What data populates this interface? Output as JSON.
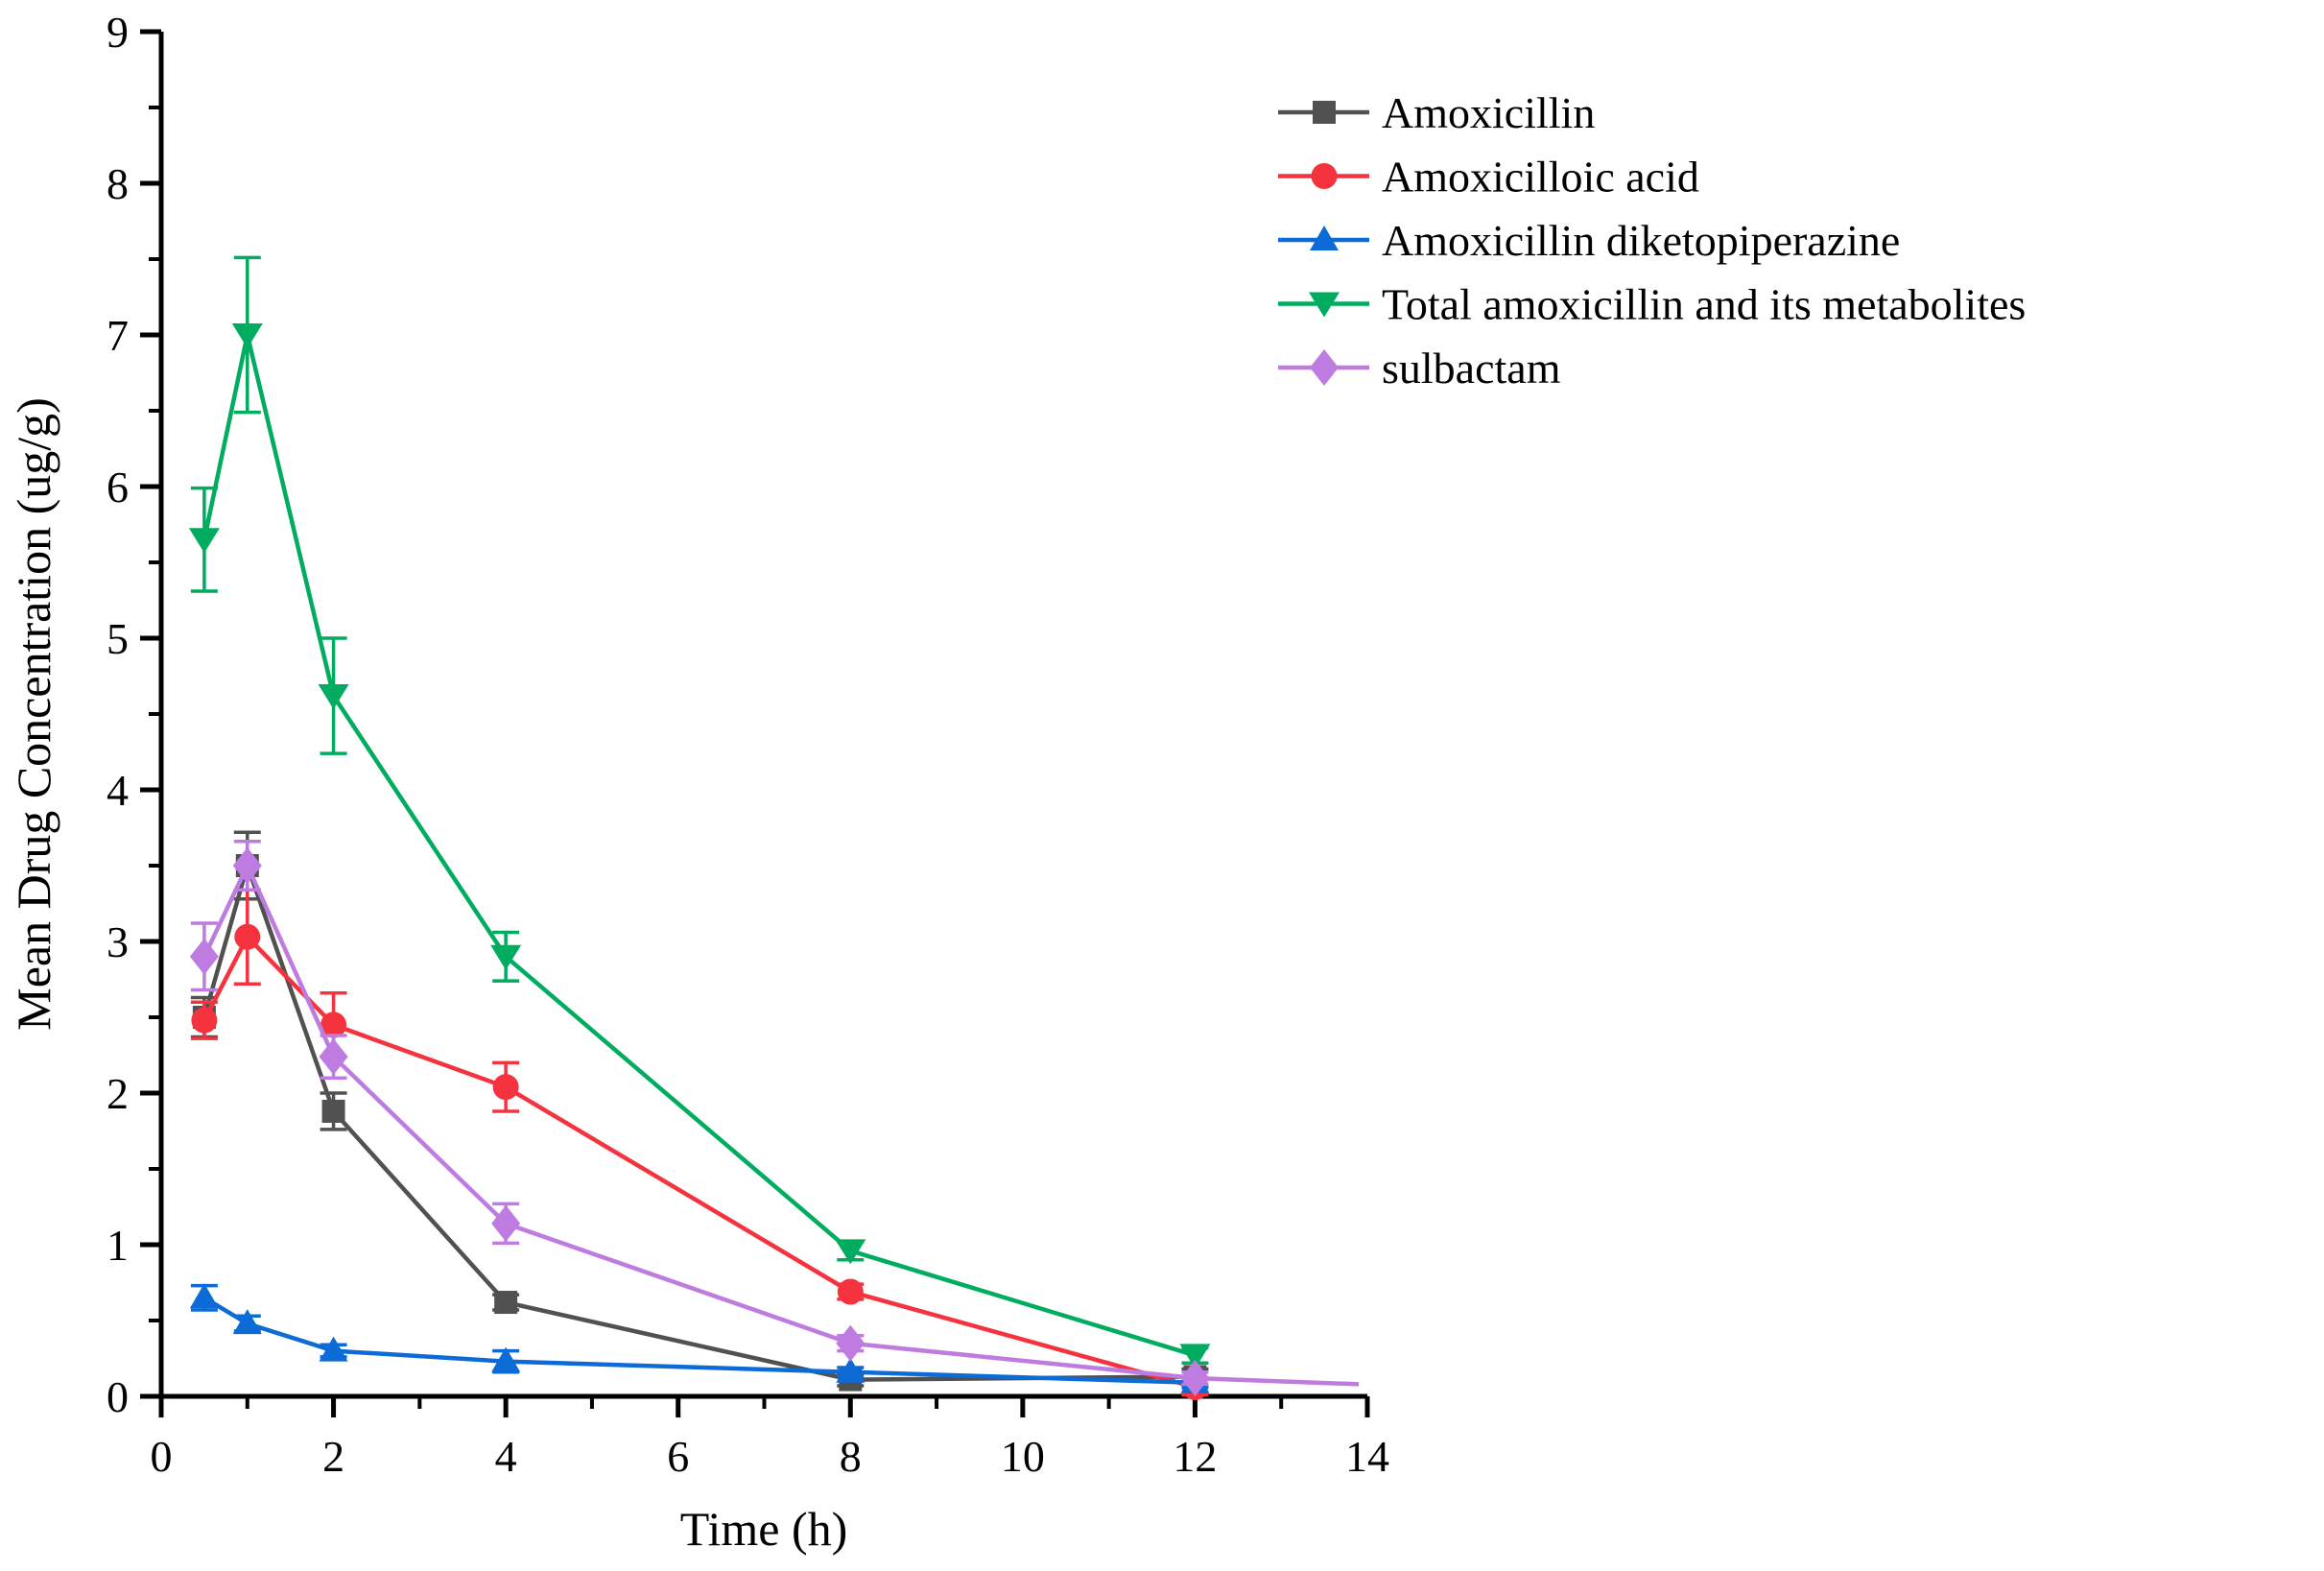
{
  "chart_data": {
    "type": "line",
    "title": "",
    "xlabel": "Time (h)",
    "ylabel": "Mean Drug Concentration (ug/g)",
    "xlim": [
      0,
      14
    ],
    "ylim": [
      0,
      9
    ],
    "x_major_ticks": [
      0,
      2,
      4,
      6,
      8,
      10,
      12,
      14
    ],
    "x_minor_ticks": [
      1,
      3,
      5,
      7,
      9,
      11,
      13
    ],
    "y_major_ticks": [
      0,
      1,
      2,
      3,
      4,
      5,
      6,
      7,
      8,
      9
    ],
    "y_minor_ticks": [
      0.5,
      1.5,
      2.5,
      3.5,
      4.5,
      5.5,
      6.5,
      7.5,
      8.5
    ],
    "grid": false,
    "error_bars": true,
    "legend_position": "upper-right-outside",
    "axis_color": "#000000",
    "x": [
      0.5,
      1,
      2,
      4,
      8,
      12
    ],
    "series": [
      {
        "name": "Amoxicillin",
        "color": "#515151",
        "marker": "square",
        "values": [
          2.5,
          3.5,
          1.88,
          0.62,
          0.11,
          0.13
        ],
        "errors": [
          0.13,
          0.22,
          0.12,
          0.05,
          0.04,
          0.05
        ]
      },
      {
        "name": "Amoxicilloic acid",
        "color": "#F5333F",
        "marker": "circle",
        "values": [
          2.48,
          3.03,
          2.45,
          2.04,
          0.69,
          0.06
        ],
        "errors": [
          0.12,
          0.31,
          0.21,
          0.16,
          0.05,
          0.05
        ]
      },
      {
        "name": "Amoxicillin diketopiperazine",
        "color": "#0D6BD7",
        "marker": "triangle-up",
        "values": [
          0.65,
          0.48,
          0.3,
          0.23,
          0.16,
          0.09
        ],
        "errors": [
          0.08,
          0.05,
          0.04,
          0.07,
          0.03,
          0.03
        ]
      },
      {
        "name": "Total amoxicillin and its metabolites",
        "color": "#00AC5F",
        "marker": "triangle-down",
        "values": [
          5.65,
          7.0,
          4.62,
          2.9,
          0.96,
          0.27
        ],
        "errors": [
          0.34,
          0.51,
          0.38,
          0.16,
          0.06,
          0.05
        ]
      },
      {
        "name": "sulbactam",
        "color": "#BE7BE0",
        "marker": "diamond",
        "values": [
          2.9,
          3.5,
          2.24,
          1.14,
          0.35,
          0.12
        ],
        "errors": [
          0.22,
          0.16,
          0.14,
          0.13,
          0.05,
          0.04
        ],
        "tail": {
          "x": 13.9,
          "y": 0.08
        }
      }
    ]
  }
}
